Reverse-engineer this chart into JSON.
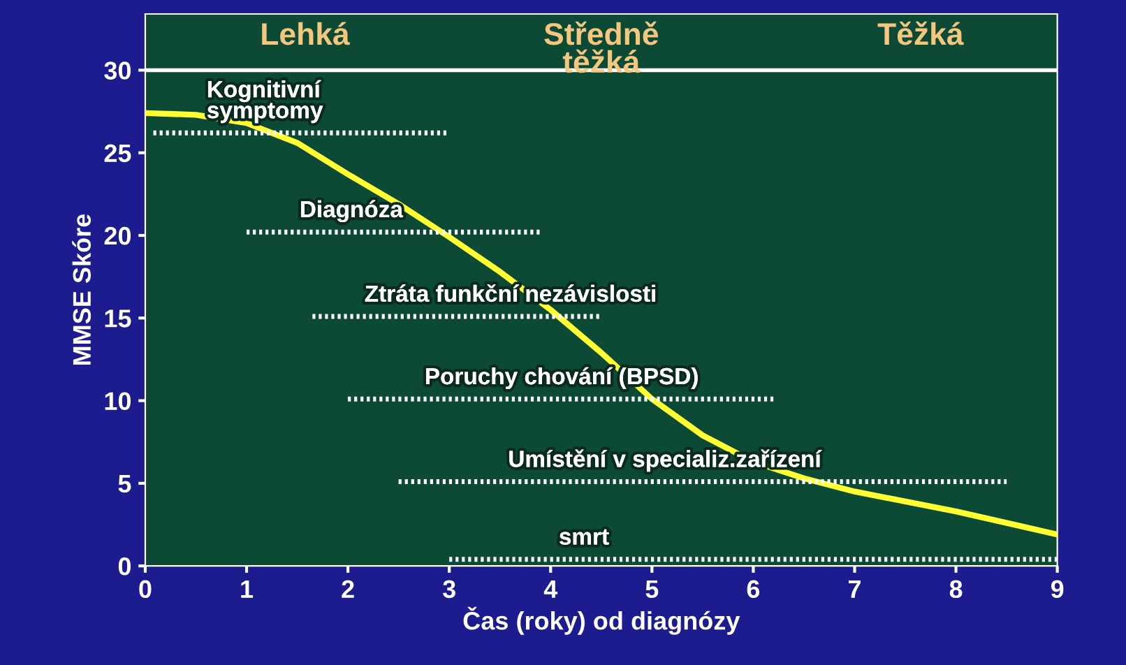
{
  "chart_data": {
    "type": "line",
    "xlabel": "Čas (roky) od diagnózy",
    "ylabel": "MMSE Skóre",
    "xlim": [
      0,
      9
    ],
    "ylim": [
      0,
      33.4
    ],
    "xticks": [
      0,
      1,
      2,
      3,
      4,
      5,
      6,
      7,
      8,
      9
    ],
    "yticks": [
      0,
      5,
      10,
      15,
      20,
      25,
      30
    ],
    "grid": false,
    "legend": false,
    "annotations": [
      "Lehká",
      "Středně\ntěžká",
      "Těžká"
    ],
    "ref_lines": [
      {
        "axis": "y",
        "value": 30,
        "color": "#ffffff"
      }
    ],
    "series": [
      {
        "color": "#ffff33",
        "x": [
          0,
          0.5,
          1,
          1.5,
          2,
          2.5,
          3,
          3.5,
          4,
          4.5,
          5,
          5.5,
          6,
          6.5,
          7,
          7.5,
          8,
          8.5,
          9
        ],
        "values": [
          27.4,
          27.3,
          26.8,
          25.6,
          23.7,
          21.9,
          19.9,
          17.8,
          15.5,
          12.9,
          10.1,
          7.9,
          6.3,
          5.3,
          4.5,
          3.9,
          3.3,
          2.6,
          1.9
        ],
        "line_style": "solid"
      },
      {
        "name": "Kognitivní\nsymptomy",
        "color": "#ffffff",
        "x": [
          0.08,
          3.0
        ],
        "values": [
          26.2,
          26.2
        ],
        "line_style": "dotted"
      },
      {
        "name": "Diagnóza",
        "color": "#ffffff",
        "x": [
          1.0,
          3.9
        ],
        "values": [
          20.2,
          20.2
        ],
        "line_style": "dotted"
      },
      {
        "name": "Ztráta funkční nezávislosti",
        "color": "#ffffff",
        "x": [
          1.65,
          4.5
        ],
        "values": [
          15.1,
          15.1
        ],
        "line_style": "dotted"
      },
      {
        "name": "Poruchy chování (BPSD)",
        "color": "#ffffff",
        "x": [
          2.0,
          6.2
        ],
        "values": [
          10.1,
          10.1
        ],
        "line_style": "dotted"
      },
      {
        "name": "Umístění v specializ.zařízení",
        "color": "#ffffff",
        "x": [
          2.5,
          8.5
        ],
        "values": [
          5.1,
          5.1
        ],
        "line_style": "dotted"
      },
      {
        "name": "smrt",
        "color": "#ffffff",
        "x": [
          3.0,
          9.0
        ],
        "values": [
          0.4,
          0.4
        ],
        "line_style": "dotted"
      }
    ]
  }
}
